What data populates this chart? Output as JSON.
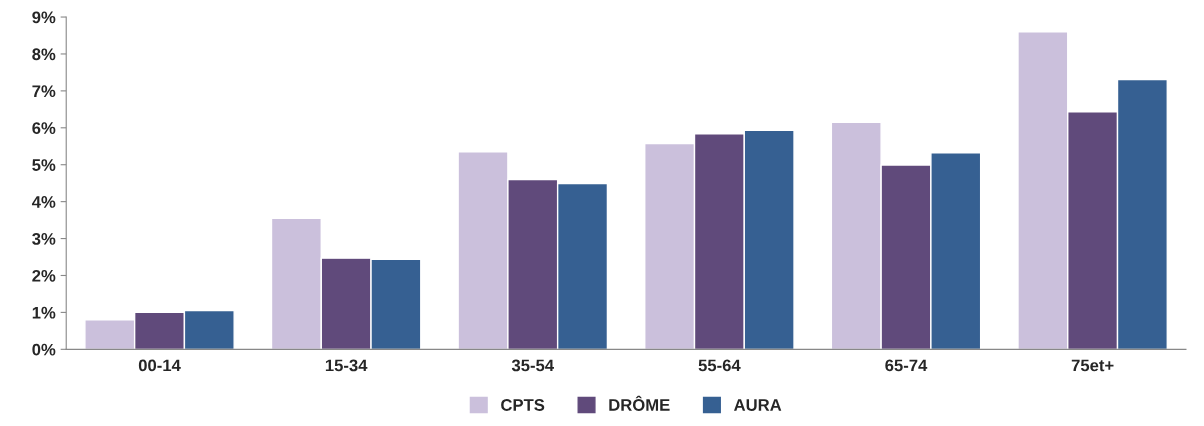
{
  "chart_data": {
    "type": "bar",
    "categories": [
      "00-14",
      "15-34",
      "35-54",
      "55-64",
      "65-74",
      "75et+"
    ],
    "series": [
      {
        "name": "CPTS",
        "color": "#cbc0dc",
        "values": [
          0.8,
          3.55,
          5.35,
          5.57,
          6.15,
          8.6
        ]
      },
      {
        "name": "DRÔME",
        "color": "#604a7b",
        "values": [
          1.0,
          2.47,
          4.6,
          5.84,
          4.99,
          6.43
        ]
      },
      {
        "name": "AURA",
        "color": "#366092",
        "values": [
          1.05,
          2.44,
          4.49,
          5.93,
          5.32,
          7.31
        ]
      }
    ],
    "ylim": [
      0,
      9
    ],
    "yticks": [
      {
        "value": 0,
        "label": "0%"
      },
      {
        "value": 1,
        "label": "1%"
      },
      {
        "value": 2,
        "label": "2%"
      },
      {
        "value": 3,
        "label": "3%"
      },
      {
        "value": 4,
        "label": "4%"
      },
      {
        "value": 5,
        "label": "5%"
      },
      {
        "value": 6,
        "label": "6%"
      },
      {
        "value": 7,
        "label": "7%"
      },
      {
        "value": 8,
        "label": "8%"
      },
      {
        "value": 9,
        "label": "9%"
      }
    ],
    "grid": false,
    "legend": "bottom"
  }
}
